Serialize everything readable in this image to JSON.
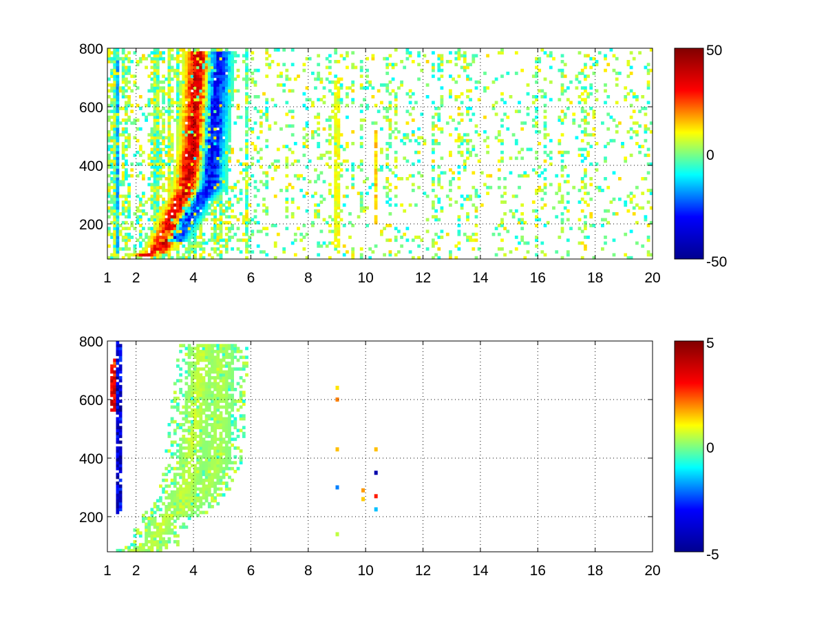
{
  "figure": {
    "background": "#ffffff"
  },
  "colormap": [
    "#00008f",
    "#0000ff",
    "#00ffff",
    "#ffff00",
    "#ff0000",
    "#800000"
  ],
  "chart_data": [
    {
      "type": "heatmap",
      "title": "",
      "xlabel": "",
      "ylabel": "",
      "xlim": [
        1,
        20
      ],
      "ylim": [
        80,
        800
      ],
      "xticks": [
        1,
        2,
        4,
        6,
        8,
        10,
        12,
        14,
        16,
        18,
        20
      ],
      "yticks": [
        200,
        400,
        600,
        800
      ],
      "grid": true,
      "colorbar": {
        "range": [
          -50,
          50
        ],
        "ticks": [
          -50,
          0,
          50
        ]
      },
      "features": [
        {
          "kind": "ridge",
          "value": 38,
          "points": [
            [
              2.2,
              90
            ],
            [
              2.8,
              110
            ],
            [
              3.3,
              220
            ],
            [
              3.8,
              330
            ],
            [
              4.0,
              480
            ],
            [
              4.1,
              640
            ],
            [
              4.2,
              790
            ]
          ]
        },
        {
          "kind": "ridge",
          "value": -32,
          "points": [
            [
              3.3,
              140
            ],
            [
              4.1,
              270
            ],
            [
              4.6,
              330
            ],
            [
              4.7,
              480
            ],
            [
              4.8,
              640
            ],
            [
              4.9,
              790
            ]
          ]
        },
        {
          "kind": "column",
          "x": 1.35,
          "y0": 90,
          "y1": 760,
          "value": -18
        },
        {
          "kind": "column",
          "x": 10.35,
          "y0": 200,
          "y1": 520,
          "value": 14
        },
        {
          "kind": "column",
          "x": 9.0,
          "y0": 120,
          "y1": 700,
          "value": 10
        }
      ]
    },
    {
      "type": "heatmap",
      "title": "",
      "xlabel": "",
      "ylabel": "",
      "xlim": [
        1,
        20
      ],
      "ylim": [
        80,
        800
      ],
      "xticks": [
        1,
        2,
        4,
        6,
        8,
        10,
        12,
        14,
        16,
        18,
        20
      ],
      "yticks": [
        200,
        400,
        600,
        800
      ],
      "grid": true,
      "colorbar": {
        "range": [
          -5,
          5
        ],
        "ticks": [
          -5,
          0,
          5
        ]
      },
      "features": [
        {
          "kind": "band",
          "value": 0.6,
          "points": [
            [
              2.0,
              85
            ],
            [
              2.6,
              100
            ],
            [
              3.0,
              190
            ],
            [
              3.6,
              250
            ],
            [
              3.9,
              380
            ],
            [
              4.1,
              560
            ],
            [
              4.3,
              790
            ]
          ]
        },
        {
          "kind": "band",
          "value": 0.4,
          "points": [
            [
              3.5,
              200
            ],
            [
              4.4,
              290
            ],
            [
              4.8,
              380
            ],
            [
              4.9,
              560
            ],
            [
              5.0,
              790
            ]
          ]
        },
        {
          "kind": "column",
          "x": 1.4,
          "y0": 210,
          "y1": 800,
          "value": -4.2
        },
        {
          "kind": "column",
          "x": 1.2,
          "y0": 560,
          "y1": 740,
          "value": 3.5
        },
        {
          "kind": "dots",
          "x": 9.0,
          "values": [
            [
              430,
              1.5
            ],
            [
              600,
              2.0
            ],
            [
              640,
              1.2
            ],
            [
              300,
              -2.0
            ],
            [
              140,
              0.5
            ]
          ]
        },
        {
          "kind": "dots",
          "x": 10.35,
          "values": [
            [
              430,
              1.5
            ],
            [
              350,
              -4.5
            ],
            [
              270,
              2.8
            ],
            [
              225,
              -1.5
            ]
          ]
        },
        {
          "kind": "dots",
          "x": 9.9,
          "values": [
            [
              290,
              1.8
            ],
            [
              260,
              1.4
            ]
          ]
        }
      ]
    }
  ]
}
